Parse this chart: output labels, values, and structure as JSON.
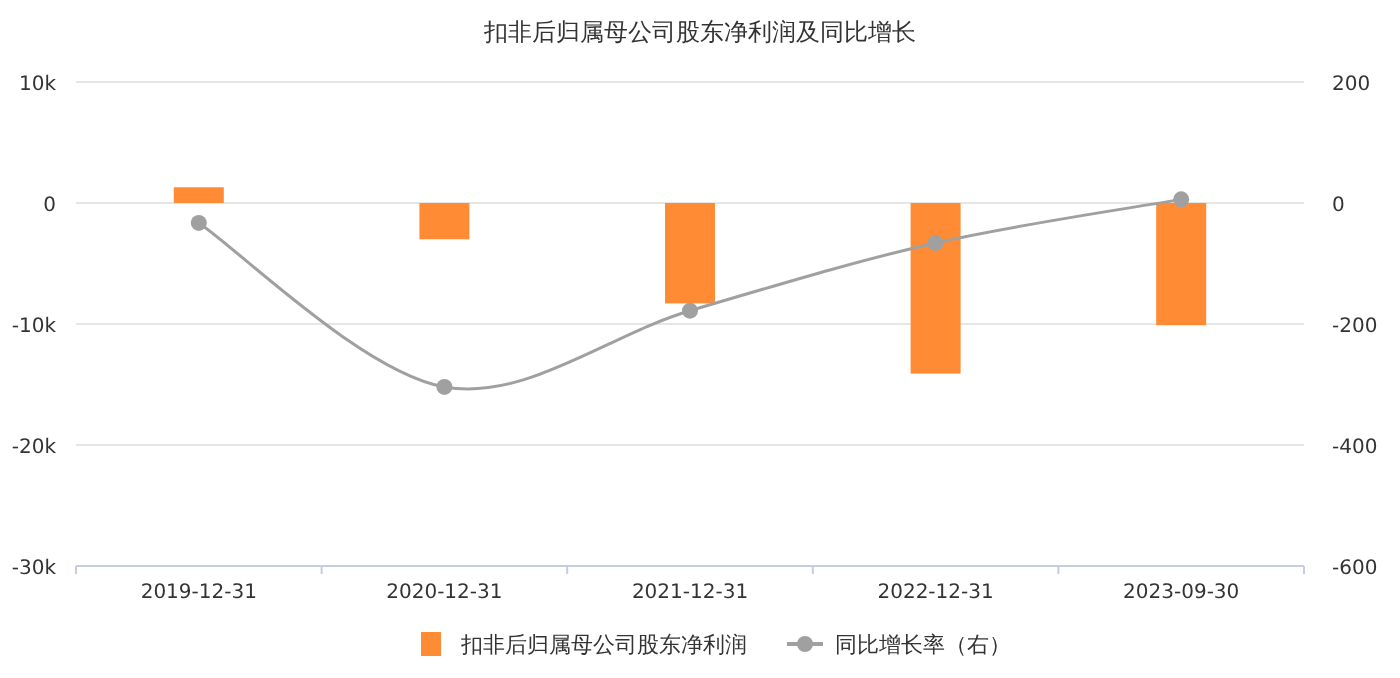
{
  "chart_data": {
    "type": "bar",
    "title": "扣非后归属母公司股东净利润及同比增长",
    "categories": [
      "2019-12-31",
      "2020-12-31",
      "2021-12-31",
      "2022-12-31",
      "2023-09-30"
    ],
    "series": [
      {
        "name": "扣非后归属母公司股东净利润",
        "color": "#ff8c35",
        "values": [
          1300,
          -3000,
          -8300,
          -14100,
          -10100
        ]
      },
      {
        "name": "同比增长率（右）",
        "color": "#a0a0a0",
        "type": "line",
        "axis": "y2",
        "marker": "circle",
        "values": [
          -33,
          -304,
          -178,
          -66,
          6
        ]
      }
    ],
    "ylim": [
      -30000,
      10000
    ],
    "yticks": [
      {
        "value": -30000,
        "label": "-30k"
      },
      {
        "value": -20000,
        "label": "-20k"
      },
      {
        "value": -10000,
        "label": "-10k"
      },
      0,
      {
        "value": 10000,
        "label": "10k"
      }
    ],
    "y2lim": [
      -600,
      200
    ],
    "y2ticks": [
      -600,
      -400,
      -200,
      0,
      200
    ],
    "grid": "y",
    "legend": "bottom"
  }
}
